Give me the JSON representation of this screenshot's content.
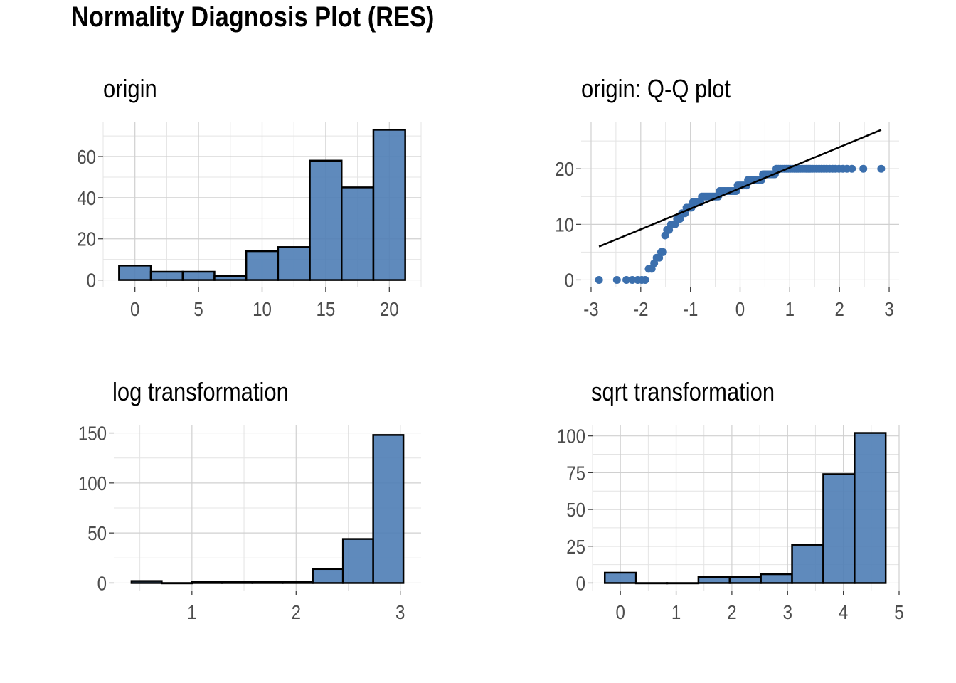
{
  "title": "Normality Diagnosis Plot (RES)",
  "colors": {
    "fill": "#4e7db5",
    "qq_points": "#3b6fad",
    "grid": "#d0d0d0",
    "axis_text": "#4d4d4d"
  },
  "chart_data": [
    {
      "id": "origin",
      "type": "bar",
      "title": "origin",
      "bins": [
        {
          "x0": -1.25,
          "x1": 1.25,
          "count": 7
        },
        {
          "x0": 1.25,
          "x1": 3.75,
          "count": 4
        },
        {
          "x0": 3.75,
          "x1": 6.25,
          "count": 4
        },
        {
          "x0": 6.25,
          "x1": 8.75,
          "count": 2
        },
        {
          "x0": 8.75,
          "x1": 11.25,
          "count": 14
        },
        {
          "x0": 11.25,
          "x1": 13.75,
          "count": 16
        },
        {
          "x0": 13.75,
          "x1": 16.25,
          "count": 58
        },
        {
          "x0": 16.25,
          "x1": 18.75,
          "count": 45
        },
        {
          "x0": 18.75,
          "x1": 21.25,
          "count": 73
        }
      ],
      "xlim": [
        -2.5,
        22.5
      ],
      "ylim": [
        -3.6,
        76.6
      ],
      "xticks": [
        0,
        5,
        10,
        15,
        20
      ],
      "yticks": [
        0,
        20,
        40,
        60
      ],
      "grid": true
    },
    {
      "id": "qq",
      "type": "scatter",
      "title": "origin: Q-Q plot",
      "points": [
        [
          -2.84,
          0
        ],
        [
          -2.48,
          0
        ],
        [
          -2.29,
          0
        ],
        [
          -2.17,
          0
        ],
        [
          -2.06,
          0
        ],
        [
          -1.98,
          0
        ],
        [
          -1.91,
          0
        ],
        [
          -1.84,
          2
        ],
        [
          -1.78,
          2
        ],
        [
          -1.73,
          3
        ],
        [
          -1.68,
          4
        ],
        [
          -1.63,
          4
        ],
        [
          -1.59,
          5
        ],
        [
          -1.55,
          5
        ],
        [
          -1.51,
          8
        ],
        [
          -1.47,
          9
        ],
        [
          -1.43,
          9
        ],
        [
          -1.39,
          10
        ],
        [
          -1.35,
          10
        ],
        [
          -1.31,
          10
        ],
        [
          -1.27,
          11
        ],
        [
          -1.24,
          11
        ],
        [
          -1.21,
          11
        ],
        [
          -1.17,
          12
        ],
        [
          -1.14,
          12
        ],
        [
          -1.11,
          12
        ],
        [
          -1.08,
          13
        ],
        [
          -1.04,
          13
        ],
        [
          -1.01,
          13
        ],
        [
          -0.98,
          13
        ],
        [
          -0.95,
          14
        ],
        [
          -0.92,
          14
        ],
        [
          -0.89,
          14
        ],
        [
          -0.86,
          14
        ],
        [
          -0.83,
          14
        ],
        [
          -0.8,
          14
        ],
        [
          -0.77,
          15
        ],
        [
          -0.74,
          15
        ],
        [
          -0.71,
          15
        ],
        [
          -0.68,
          15
        ],
        [
          -0.65,
          15
        ],
        [
          -0.62,
          15
        ],
        [
          -0.59,
          15
        ],
        [
          -0.56,
          15
        ],
        [
          -0.53,
          15
        ],
        [
          -0.5,
          15
        ],
        [
          -0.47,
          15
        ],
        [
          -0.44,
          15
        ],
        [
          -0.41,
          16
        ],
        [
          -0.38,
          16
        ],
        [
          -0.35,
          16
        ],
        [
          -0.32,
          16
        ],
        [
          -0.29,
          16
        ],
        [
          -0.26,
          16
        ],
        [
          -0.23,
          16
        ],
        [
          -0.2,
          16
        ],
        [
          -0.17,
          16
        ],
        [
          -0.14,
          16
        ],
        [
          -0.11,
          16
        ],
        [
          -0.08,
          16
        ],
        [
          -0.05,
          17
        ],
        [
          -0.02,
          17
        ],
        [
          0.01,
          17
        ],
        [
          0.04,
          17
        ],
        [
          0.07,
          17
        ],
        [
          0.1,
          17
        ],
        [
          0.13,
          17
        ],
        [
          0.16,
          18
        ],
        [
          0.19,
          18
        ],
        [
          0.22,
          18
        ],
        [
          0.25,
          18
        ],
        [
          0.28,
          18
        ],
        [
          0.31,
          18
        ],
        [
          0.34,
          18
        ],
        [
          0.37,
          18
        ],
        [
          0.4,
          18
        ],
        [
          0.43,
          18
        ],
        [
          0.46,
          19
        ],
        [
          0.49,
          19
        ],
        [
          0.52,
          19
        ],
        [
          0.55,
          19
        ],
        [
          0.58,
          19
        ],
        [
          0.61,
          19
        ],
        [
          0.64,
          19
        ],
        [
          0.67,
          19
        ],
        [
          0.7,
          19
        ],
        [
          0.73,
          20
        ],
        [
          0.77,
          20
        ],
        [
          0.81,
          20
        ],
        [
          0.85,
          20
        ],
        [
          0.89,
          20
        ],
        [
          0.93,
          20
        ],
        [
          0.97,
          20
        ],
        [
          1.01,
          20
        ],
        [
          1.05,
          20
        ],
        [
          1.09,
          20
        ],
        [
          1.13,
          20
        ],
        [
          1.17,
          20
        ],
        [
          1.21,
          20
        ],
        [
          1.25,
          20
        ],
        [
          1.29,
          20
        ],
        [
          1.33,
          20
        ],
        [
          1.37,
          20
        ],
        [
          1.41,
          20
        ],
        [
          1.45,
          20
        ],
        [
          1.49,
          20
        ],
        [
          1.54,
          20
        ],
        [
          1.59,
          20
        ],
        [
          1.64,
          20
        ],
        [
          1.69,
          20
        ],
        [
          1.74,
          20
        ],
        [
          1.8,
          20
        ],
        [
          1.86,
          20
        ],
        [
          1.92,
          20
        ],
        [
          1.99,
          20
        ],
        [
          2.07,
          20
        ],
        [
          2.15,
          20
        ],
        [
          2.25,
          20
        ],
        [
          2.48,
          20
        ],
        [
          2.84,
          20
        ]
      ],
      "line": {
        "x": [
          -2.84,
          2.84
        ],
        "y": [
          6.0,
          27.0
        ]
      },
      "xlim": [
        -3.2,
        3.2
      ],
      "ylim": [
        -1.35,
        28.35
      ],
      "xticks": [
        -3,
        -2,
        -1,
        0,
        1,
        2,
        3
      ],
      "yticks": [
        0,
        10,
        20
      ],
      "grid": true
    },
    {
      "id": "log",
      "type": "bar",
      "title": "log transformation",
      "bins": [
        {
          "x0": 0.42,
          "x1": 0.71,
          "count": 2
        },
        {
          "x0": 0.71,
          "x1": 1.0,
          "count": 0
        },
        {
          "x0": 1.0,
          "x1": 1.29,
          "count": 1
        },
        {
          "x0": 1.29,
          "x1": 1.58,
          "count": 1
        },
        {
          "x0": 1.58,
          "x1": 1.87,
          "count": 1
        },
        {
          "x0": 1.87,
          "x1": 2.16,
          "count": 1
        },
        {
          "x0": 2.16,
          "x1": 2.45,
          "count": 14
        },
        {
          "x0": 2.45,
          "x1": 2.74,
          "count": 44
        },
        {
          "x0": 2.74,
          "x1": 3.03,
          "count": 148
        }
      ],
      "xlim": [
        0.25,
        3.2
      ],
      "ylim": [
        -7.5,
        157.5
      ],
      "xticks": [
        1,
        2,
        3
      ],
      "yticks": [
        0,
        50,
        100,
        150
      ],
      "grid": true
    },
    {
      "id": "sqrt",
      "type": "bar",
      "title": "sqrt transformation",
      "bins": [
        {
          "x0": -0.28,
          "x1": 0.28,
          "count": 7
        },
        {
          "x0": 0.28,
          "x1": 0.84,
          "count": 0
        },
        {
          "x0": 0.84,
          "x1": 1.4,
          "count": 0
        },
        {
          "x0": 1.4,
          "x1": 1.96,
          "count": 4
        },
        {
          "x0": 1.96,
          "x1": 2.52,
          "count": 4
        },
        {
          "x0": 2.52,
          "x1": 3.08,
          "count": 6
        },
        {
          "x0": 3.08,
          "x1": 3.64,
          "count": 26
        },
        {
          "x0": 3.64,
          "x1": 4.2,
          "count": 74
        },
        {
          "x0": 4.2,
          "x1": 4.76,
          "count": 102
        }
      ],
      "xlim": [
        -0.5,
        5.0
      ],
      "ylim": [
        -5.1,
        107.1
      ],
      "xticks": [
        0,
        1,
        2,
        3,
        4,
        5
      ],
      "yticks": [
        0,
        25,
        50,
        75,
        100
      ],
      "grid": true
    }
  ]
}
